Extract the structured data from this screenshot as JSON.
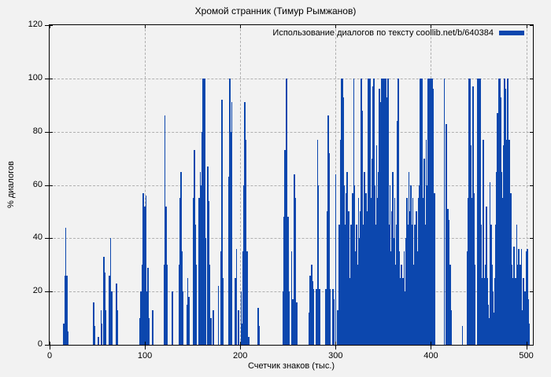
{
  "colors": {
    "bar": "#0c47ae",
    "background": "#f2f2f2",
    "grid": "#b0b0b0",
    "axis": "#000000"
  },
  "chart_data": {
    "type": "bar",
    "title": "Хромой странник (Тимур Рымжанов)",
    "legend": "Использование диалогов по тексту coollib.net/b/640384",
    "legend_position": "top-right-inside",
    "xlabel": "Счетчик знаков (тыс.)",
    "ylabel": "% диалогов",
    "xlim": [
      0,
      507
    ],
    "ylim": [
      0,
      120
    ],
    "xticks": [
      0,
      100,
      200,
      300,
      400,
      500
    ],
    "yticks": [
      0,
      20,
      40,
      60,
      80,
      100,
      120
    ],
    "grid": true,
    "bar_style": "impulses",
    "points": [
      [
        15,
        8
      ],
      [
        16,
        26
      ],
      [
        17,
        44
      ],
      [
        18,
        26
      ],
      [
        19,
        5
      ],
      [
        46,
        16
      ],
      [
        47,
        7
      ],
      [
        51,
        3
      ],
      [
        54,
        13
      ],
      [
        55,
        8
      ],
      [
        57,
        33
      ],
      [
        58,
        27
      ],
      [
        59,
        13
      ],
      [
        63,
        26
      ],
      [
        64,
        40
      ],
      [
        65,
        20
      ],
      [
        70,
        23
      ],
      [
        71,
        13
      ],
      [
        95,
        10
      ],
      [
        96,
        20
      ],
      [
        97,
        30
      ],
      [
        98,
        57
      ],
      [
        99,
        25
      ],
      [
        100,
        52
      ],
      [
        101,
        56
      ],
      [
        102,
        20
      ],
      [
        103,
        29
      ],
      [
        104,
        10
      ],
      [
        108,
        13
      ],
      [
        120,
        30
      ],
      [
        121,
        86
      ],
      [
        122,
        52
      ],
      [
        123,
        30
      ],
      [
        129,
        20
      ],
      [
        136,
        30
      ],
      [
        137,
        55
      ],
      [
        138,
        65
      ],
      [
        139,
        35
      ],
      [
        140,
        20
      ],
      [
        144,
        15
      ],
      [
        145,
        25
      ],
      [
        146,
        18
      ],
      [
        151,
        55
      ],
      [
        152,
        73
      ],
      [
        153,
        45
      ],
      [
        154,
        30
      ],
      [
        157,
        55
      ],
      [
        158,
        65
      ],
      [
        159,
        60
      ],
      [
        160,
        80
      ],
      [
        161,
        100
      ],
      [
        162,
        100
      ],
      [
        163,
        100
      ],
      [
        164,
        40
      ],
      [
        166,
        67
      ],
      [
        167,
        54
      ],
      [
        168,
        30
      ],
      [
        169,
        10
      ],
      [
        172,
        13
      ],
      [
        177,
        22
      ],
      [
        180,
        35
      ],
      [
        181,
        92
      ],
      [
        182,
        25
      ],
      [
        188,
        63
      ],
      [
        189,
        100
      ],
      [
        190,
        80
      ],
      [
        191,
        91
      ],
      [
        195,
        25
      ],
      [
        196,
        36
      ],
      [
        198,
        13
      ],
      [
        201,
        20
      ],
      [
        202,
        8
      ],
      [
        203,
        35
      ],
      [
        204,
        60
      ],
      [
        205,
        91
      ],
      [
        206,
        77
      ],
      [
        207,
        35
      ],
      [
        209,
        3
      ],
      [
        219,
        14
      ],
      [
        220,
        7
      ],
      [
        245,
        20
      ],
      [
        246,
        48
      ],
      [
        247,
        73
      ],
      [
        248,
        100
      ],
      [
        249,
        100
      ],
      [
        250,
        48
      ],
      [
        251,
        20
      ],
      [
        254,
        35
      ],
      [
        255,
        17
      ],
      [
        257,
        64
      ],
      [
        258,
        55
      ],
      [
        259,
        16
      ],
      [
        272,
        12
      ],
      [
        273,
        26
      ],
      [
        275,
        30
      ],
      [
        276,
        24
      ],
      [
        277,
        21
      ],
      [
        280,
        21
      ],
      [
        281,
        77
      ],
      [
        282,
        60
      ],
      [
        283,
        21
      ],
      [
        290,
        21
      ],
      [
        291,
        50
      ],
      [
        292,
        86
      ],
      [
        293,
        72
      ],
      [
        294,
        21
      ],
      [
        297,
        21
      ],
      [
        298,
        17
      ],
      [
        300,
        64
      ],
      [
        302,
        13
      ],
      [
        304,
        45
      ],
      [
        305,
        77
      ],
      [
        306,
        100
      ],
      [
        307,
        100
      ],
      [
        308,
        93
      ],
      [
        309,
        60
      ],
      [
        310,
        45
      ],
      [
        311,
        57
      ],
      [
        312,
        65
      ],
      [
        313,
        35
      ],
      [
        314,
        50
      ],
      [
        315,
        25
      ],
      [
        316,
        45
      ],
      [
        317,
        30
      ],
      [
        318,
        57
      ],
      [
        319,
        100
      ],
      [
        320,
        60
      ],
      [
        321,
        35
      ],
      [
        322,
        45
      ],
      [
        323,
        30
      ],
      [
        324,
        55
      ],
      [
        325,
        40
      ],
      [
        326,
        50
      ],
      [
        327,
        100
      ],
      [
        328,
        88
      ],
      [
        329,
        45
      ],
      [
        330,
        65
      ],
      [
        331,
        40
      ],
      [
        332,
        57
      ],
      [
        333,
        50
      ],
      [
        334,
        100
      ],
      [
        335,
        100
      ],
      [
        336,
        100
      ],
      [
        337,
        55
      ],
      [
        338,
        70
      ],
      [
        339,
        97
      ],
      [
        340,
        100
      ],
      [
        341,
        60
      ],
      [
        342,
        45
      ],
      [
        343,
        75
      ],
      [
        344,
        55
      ],
      [
        345,
        65
      ],
      [
        346,
        96
      ],
      [
        347,
        91
      ],
      [
        348,
        100
      ],
      [
        349,
        100
      ],
      [
        350,
        100
      ],
      [
        351,
        93
      ],
      [
        352,
        100
      ],
      [
        353,
        100
      ],
      [
        354,
        93
      ],
      [
        355,
        100
      ],
      [
        356,
        45
      ],
      [
        357,
        60
      ],
      [
        358,
        35
      ],
      [
        359,
        50
      ],
      [
        360,
        65
      ],
      [
        361,
        40
      ],
      [
        362,
        55
      ],
      [
        363,
        30
      ],
      [
        364,
        45
      ],
      [
        365,
        84
      ],
      [
        366,
        100
      ],
      [
        367,
        35
      ],
      [
        368,
        25
      ],
      [
        369,
        30
      ],
      [
        370,
        20
      ],
      [
        371,
        25
      ],
      [
        372,
        35
      ],
      [
        373,
        20
      ],
      [
        374,
        40
      ],
      [
        375,
        55
      ],
      [
        376,
        45
      ],
      [
        377,
        65
      ],
      [
        378,
        50
      ],
      [
        379,
        60
      ],
      [
        380,
        45
      ],
      [
        381,
        55
      ],
      [
        382,
        30
      ],
      [
        383,
        45
      ],
      [
        384,
        25
      ],
      [
        385,
        50
      ],
      [
        386,
        35
      ],
      [
        387,
        55
      ],
      [
        388,
        60
      ],
      [
        389,
        100
      ],
      [
        390,
        100
      ],
      [
        391,
        100
      ],
      [
        392,
        55
      ],
      [
        393,
        70
      ],
      [
        394,
        45
      ],
      [
        395,
        77
      ],
      [
        396,
        60
      ],
      [
        397,
        100
      ],
      [
        398,
        100
      ],
      [
        399,
        100
      ],
      [
        400,
        100
      ],
      [
        401,
        100
      ],
      [
        402,
        96
      ],
      [
        403,
        20
      ],
      [
        404,
        57
      ],
      [
        414,
        100
      ],
      [
        416,
        83
      ],
      [
        418,
        51
      ],
      [
        419,
        47
      ],
      [
        420,
        30
      ],
      [
        421,
        13
      ],
      [
        433,
        7
      ],
      [
        438,
        35
      ],
      [
        439,
        55
      ],
      [
        440,
        100
      ],
      [
        441,
        100
      ],
      [
        442,
        75
      ],
      [
        443,
        55
      ],
      [
        444,
        97
      ],
      [
        445,
        57
      ],
      [
        446,
        30
      ],
      [
        449,
        100
      ],
      [
        450,
        100
      ],
      [
        451,
        100
      ],
      [
        452,
        100
      ],
      [
        453,
        45
      ],
      [
        454,
        25
      ],
      [
        455,
        77
      ],
      [
        456,
        25
      ],
      [
        457,
        30
      ],
      [
        458,
        52
      ],
      [
        459,
        25
      ],
      [
        460,
        15
      ],
      [
        461,
        10
      ],
      [
        462,
        61
      ],
      [
        463,
        45
      ],
      [
        464,
        30
      ],
      [
        465,
        20
      ],
      [
        466,
        12
      ],
      [
        467,
        25
      ],
      [
        468,
        45
      ],
      [
        469,
        65
      ],
      [
        470,
        87
      ],
      [
        471,
        100
      ],
      [
        472,
        100
      ],
      [
        473,
        93
      ],
      [
        474,
        65
      ],
      [
        475,
        55
      ],
      [
        476,
        75
      ],
      [
        477,
        100
      ],
      [
        478,
        96
      ],
      [
        479,
        77
      ],
      [
        480,
        100
      ],
      [
        481,
        100
      ],
      [
        482,
        77
      ],
      [
        483,
        57
      ],
      [
        484,
        57
      ],
      [
        485,
        30
      ],
      [
        486,
        25
      ],
      [
        487,
        37
      ],
      [
        488,
        20
      ],
      [
        489,
        25
      ],
      [
        490,
        45
      ],
      [
        491,
        30
      ],
      [
        492,
        36
      ],
      [
        493,
        20
      ],
      [
        494,
        30
      ],
      [
        495,
        36
      ],
      [
        496,
        13
      ],
      [
        497,
        25
      ],
      [
        498,
        20
      ],
      [
        499,
        20
      ],
      [
        500,
        35
      ],
      [
        501,
        36
      ],
      [
        502,
        17
      ],
      [
        503,
        8
      ]
    ]
  }
}
